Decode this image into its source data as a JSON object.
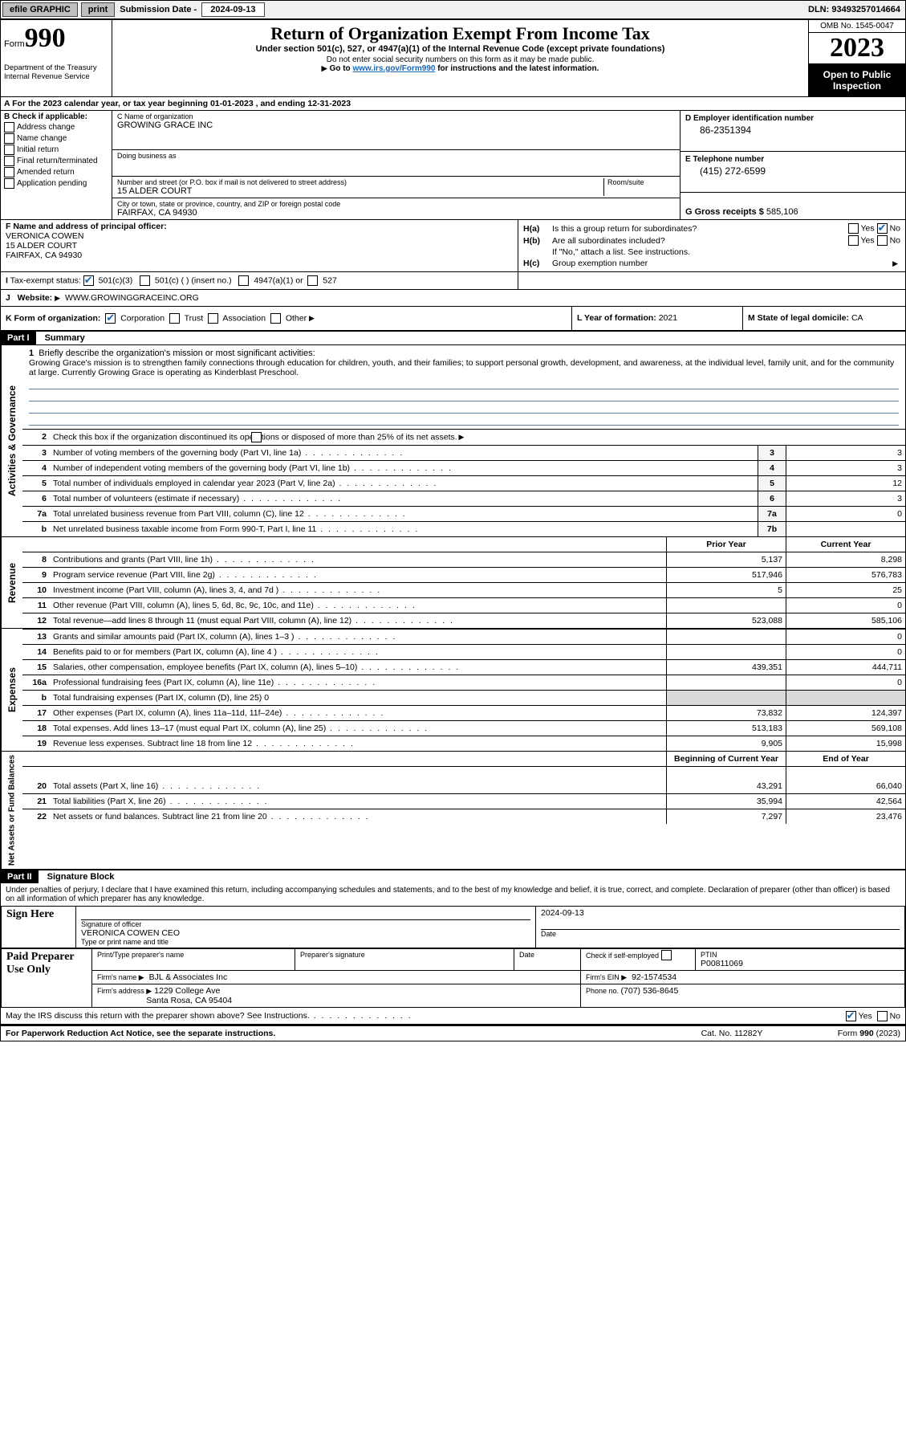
{
  "topbar": {
    "efile": "efile GRAPHIC",
    "print": "print",
    "subdate_label": "Submission Date - ",
    "subdate": "2024-09-13",
    "dln_label": "DLN: ",
    "dln": "93493257014664"
  },
  "header": {
    "form_label": "Form",
    "form_num": "990",
    "title": "Return of Organization Exempt From Income Tax",
    "subtitle": "Under section 501(c), 527, or 4947(a)(1) of the Internal Revenue Code (except private foundations)",
    "note1": "Do not enter social security numbers on this form as it may be made public.",
    "note2_pre": "Go to ",
    "note2_link": "www.irs.gov/Form990",
    "note2_post": " for instructions and the latest information.",
    "dept": "Department of the Treasury\nInternal Revenue Service",
    "omb": "OMB No. 1545-0047",
    "year": "2023",
    "inspect": "Open to Public Inspection"
  },
  "period": {
    "label_a": "A For the 2023 calendar year, or tax year beginning ",
    "begin": "01-01-2023",
    "label_mid": "  , and ending ",
    "end": "12-31-2023"
  },
  "b": {
    "head": "B Check if applicable:",
    "addr": "Address change",
    "name": "Name change",
    "init": "Initial return",
    "final": "Final return/terminated",
    "amend": "Amended return",
    "app": "Application pending"
  },
  "c": {
    "name_label": "C Name of organization",
    "name": "GROWING GRACE INC",
    "dba_label": "Doing business as",
    "addr_label": "Number and street (or P.O. box if mail is not delivered to street address)",
    "room_label": "Room/suite",
    "addr": "15 ALDER COURT",
    "city_label": "City or town, state or province, country, and ZIP or foreign postal code",
    "city": "FAIRFAX, CA  94930"
  },
  "d": {
    "ein_label": "D Employer identification number",
    "ein": "86-2351394",
    "phone_label": "E Telephone number",
    "phone": "(415) 272-6599",
    "gross_label": "G Gross receipts $ ",
    "gross": "585,106"
  },
  "f": {
    "label": "F Name and address of principal officer:",
    "name": "VERONICA COWEN",
    "addr1": "15 ALDER COURT",
    "addr2": "FAIRFAX, CA  94930"
  },
  "h": {
    "a_label": "H(a)",
    "a_text": "Is this a group return for subordinates?",
    "b_label": "H(b)",
    "b_text": "Are all subordinates included?",
    "b_note": "If \"No,\" attach a list. See instructions.",
    "c_label": "H(c)",
    "c_text": "Group exemption number ",
    "yes": "Yes",
    "no": "No"
  },
  "i": {
    "label": "I",
    "text": "Tax-exempt status:",
    "o1": "501(c)(3)",
    "o2": "501(c) (   ) (insert no.)",
    "o3": "4947(a)(1) or",
    "o4": "527"
  },
  "j": {
    "label": "J",
    "text": "Website: ",
    "arrow": "▶",
    "url": "WWW.GROWINGGRACEINC.ORG"
  },
  "k": {
    "label": "K Form of organization:",
    "corp": "Corporation",
    "trust": "Trust",
    "assoc": "Association",
    "other": "Other"
  },
  "l": {
    "label": "L Year of formation: ",
    "val": "2021"
  },
  "m": {
    "label": "M State of legal domicile: ",
    "val": "CA"
  },
  "part1": {
    "header": "Part I",
    "title": "Summary",
    "vtab1": "Activities & Governance",
    "vtab2": "Revenue",
    "vtab3": "Expenses",
    "vtab4": "Net Assets or Fund Balances",
    "l1_label": "1",
    "l1_text": "Briefly describe the organization's mission or most significant activities:",
    "l1_mission": "Growing Grace's mission is to strengthen family connections through education for children, youth, and their families; to support personal growth, development, and awareness, at the individual level, family unit, and for the community at large. Currently Growing Grace is operating as Kinderblast Preschool.",
    "l2": "Check this box      if the organization discontinued its operations or disposed of more than 25% of its net assets.",
    "rows_gov": [
      {
        "n": "3",
        "d": "Number of voting members of the governing body (Part VI, line 1a)",
        "v": "3"
      },
      {
        "n": "4",
        "d": "Number of independent voting members of the governing body (Part VI, line 1b)",
        "v": "3"
      },
      {
        "n": "5",
        "d": "Total number of individuals employed in calendar year 2023 (Part V, line 2a)",
        "v": "12"
      },
      {
        "n": "6",
        "d": "Total number of volunteers (estimate if necessary)",
        "v": "3"
      },
      {
        "n": "7a",
        "d": "Total unrelated business revenue from Part VIII, column (C), line 12",
        "v": "0"
      },
      {
        "n": "b",
        "d": "Net unrelated business taxable income from Form 990-T, Part I, line 11",
        "bn": "7b",
        "v": ""
      }
    ],
    "col_prior": "Prior Year",
    "col_curr": "Current Year",
    "rows_rev": [
      {
        "n": "8",
        "d": "Contributions and grants (Part VIII, line 1h)",
        "p": "5,137",
        "c": "8,298"
      },
      {
        "n": "9",
        "d": "Program service revenue (Part VIII, line 2g)",
        "p": "517,946",
        "c": "576,783"
      },
      {
        "n": "10",
        "d": "Investment income (Part VIII, column (A), lines 3, 4, and 7d )",
        "p": "5",
        "c": "25"
      },
      {
        "n": "11",
        "d": "Other revenue (Part VIII, column (A), lines 5, 6d, 8c, 9c, 10c, and 11e)",
        "p": "",
        "c": "0"
      },
      {
        "n": "12",
        "d": "Total revenue—add lines 8 through 11 (must equal Part VIII, column (A), line 12)",
        "p": "523,088",
        "c": "585,106"
      }
    ],
    "rows_exp": [
      {
        "n": "13",
        "d": "Grants and similar amounts paid (Part IX, column (A), lines 1–3 )",
        "p": "",
        "c": "0"
      },
      {
        "n": "14",
        "d": "Benefits paid to or for members (Part IX, column (A), line 4 )",
        "p": "",
        "c": "0"
      },
      {
        "n": "15",
        "d": "Salaries, other compensation, employee benefits (Part IX, column (A), lines 5–10)",
        "p": "439,351",
        "c": "444,711"
      },
      {
        "n": "16a",
        "d": "Professional fundraising fees (Part IX, column (A), line 11e)",
        "p": "",
        "c": "0"
      },
      {
        "n": "b",
        "d": "Total fundraising expenses (Part IX, column (D), line 25) 0",
        "p": "grey",
        "c": "grey",
        "noval": true
      },
      {
        "n": "17",
        "d": "Other expenses (Part IX, column (A), lines 11a–11d, 11f–24e)",
        "p": "73,832",
        "c": "124,397"
      },
      {
        "n": "18",
        "d": "Total expenses. Add lines 13–17 (must equal Part IX, column (A), line 25)",
        "p": "513,183",
        "c": "569,108"
      },
      {
        "n": "19",
        "d": "Revenue less expenses. Subtract line 18 from line 12",
        "p": "9,905",
        "c": "15,998"
      }
    ],
    "col_beg": "Beginning of Current Year",
    "col_end": "End of Year",
    "rows_net": [
      {
        "n": "20",
        "d": "Total assets (Part X, line 16)",
        "p": "43,291",
        "c": "66,040"
      },
      {
        "n": "21",
        "d": "Total liabilities (Part X, line 26)",
        "p": "35,994",
        "c": "42,564"
      },
      {
        "n": "22",
        "d": "Net assets or fund balances. Subtract line 21 from line 20",
        "p": "7,297",
        "c": "23,476"
      }
    ]
  },
  "part2": {
    "header": "Part II",
    "title": "Signature Block",
    "perjury": "Under penalties of perjury, I declare that I have examined this return, including accompanying schedules and statements, and to the best of my knowledge and belief, it is true, correct, and complete. Declaration of preparer (other than officer) is based on all information of which preparer has any knowledge.",
    "sign_here": "Sign Here",
    "sig_officer": "Signature of officer",
    "sig_name": "VERONICA COWEN  CEO",
    "sig_type": "Type or print name and title",
    "date_label": "Date",
    "date_val": "2024-09-13",
    "paid": "Paid Preparer Use Only",
    "prep_name_label": "Print/Type preparer's name",
    "prep_sig_label": "Preparer's signature",
    "prep_date_label": "Date",
    "self_emp": "Check         if self-employed",
    "ptin_label": "PTIN",
    "ptin": "P00811069",
    "firm_name_label": "Firm's name   ",
    "firm_name": "BJL & Associates Inc",
    "firm_ein_label": "Firm's EIN ",
    "firm_ein": "92-1574534",
    "firm_addr_label": "Firm's address ",
    "firm_addr1": "1229 College Ave",
    "firm_addr2": "Santa Rosa, CA  95404",
    "firm_phone_label": "Phone no. ",
    "firm_phone": "(707) 536-8645",
    "discuss": "May the IRS discuss this return with the preparer shown above? See Instructions."
  },
  "footer": {
    "left": "For Paperwork Reduction Act Notice, see the separate instructions.",
    "mid": "Cat. No. 11282Y",
    "right": "Form 990 (2023)"
  }
}
